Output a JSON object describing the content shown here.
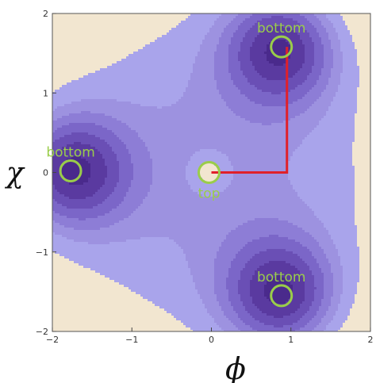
{
  "chart_data": {
    "type": "contour",
    "title": "",
    "xlabel": "ϕ",
    "ylabel": "χ",
    "xlim": [
      -2,
      2
    ],
    "ylim": [
      -2,
      2
    ],
    "x_ticks": [
      -2,
      -1,
      0,
      1,
      2
    ],
    "y_ticks": [
      -2,
      -1,
      0,
      1,
      2
    ],
    "grid": false,
    "contour_levels_shown": 8,
    "fill_colors_low_to_high": [
      "#3d1f78",
      "#4a2a8c",
      "#5a3aa0",
      "#6a4fb5",
      "#7b66c8",
      "#8d7dd6",
      "#9d92e0",
      "#a9a4eb",
      "#f2e6d0"
    ],
    "markers": [
      {
        "label": "bottom",
        "x": 0.88,
        "y": 1.58
      },
      {
        "label": "bottom",
        "x": -1.77,
        "y": 0.02
      },
      {
        "label": "top",
        "x": -0.03,
        "y": 0.0
      },
      {
        "label": "bottom",
        "x": 0.88,
        "y": -1.55
      }
    ],
    "path": {
      "color": "#e0202a",
      "points": [
        [
          0.0,
          0.0
        ],
        [
          0.95,
          0.0
        ],
        [
          0.95,
          0.0
        ],
        [
          0.88,
          1.58
        ]
      ]
    },
    "marker_color": "#9acd4a"
  }
}
